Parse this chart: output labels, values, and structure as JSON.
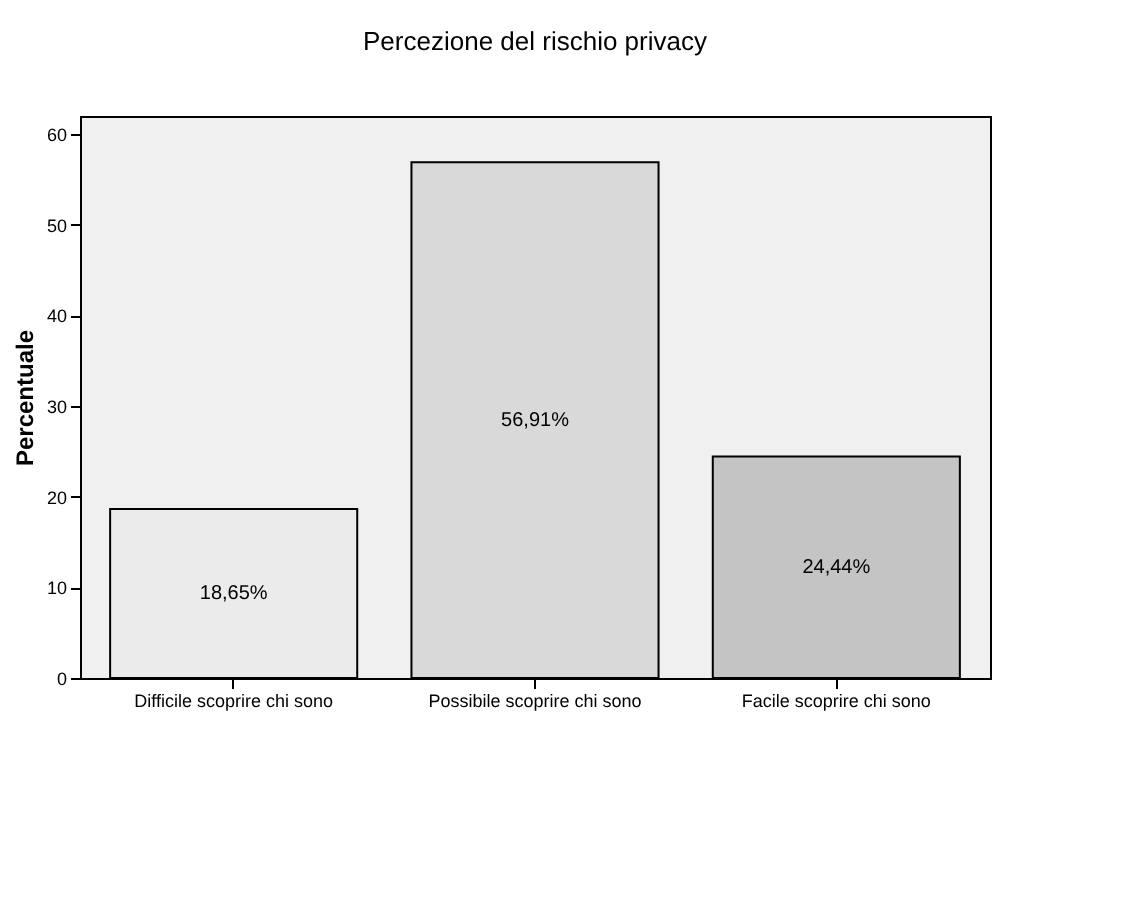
{
  "chart_data": {
    "type": "bar",
    "title": "Percezione del rischio privacy",
    "ylabel": "Percentuale",
    "categories": [
      "Difficile scoprire chi sono",
      "Possibile scoprire chi sono",
      "Facile scoprire chi sono"
    ],
    "values": [
      18.65,
      56.91,
      24.44
    ],
    "value_labels": [
      "18,65%",
      "56,91%",
      "24,44%"
    ],
    "colors": [
      "#ebebeb",
      "#d9d9d9",
      "#c4c4c4"
    ],
    "ylim": [
      0,
      62
    ],
    "yticks": [
      0,
      10,
      20,
      30,
      40,
      50,
      60
    ],
    "grid": false
  }
}
